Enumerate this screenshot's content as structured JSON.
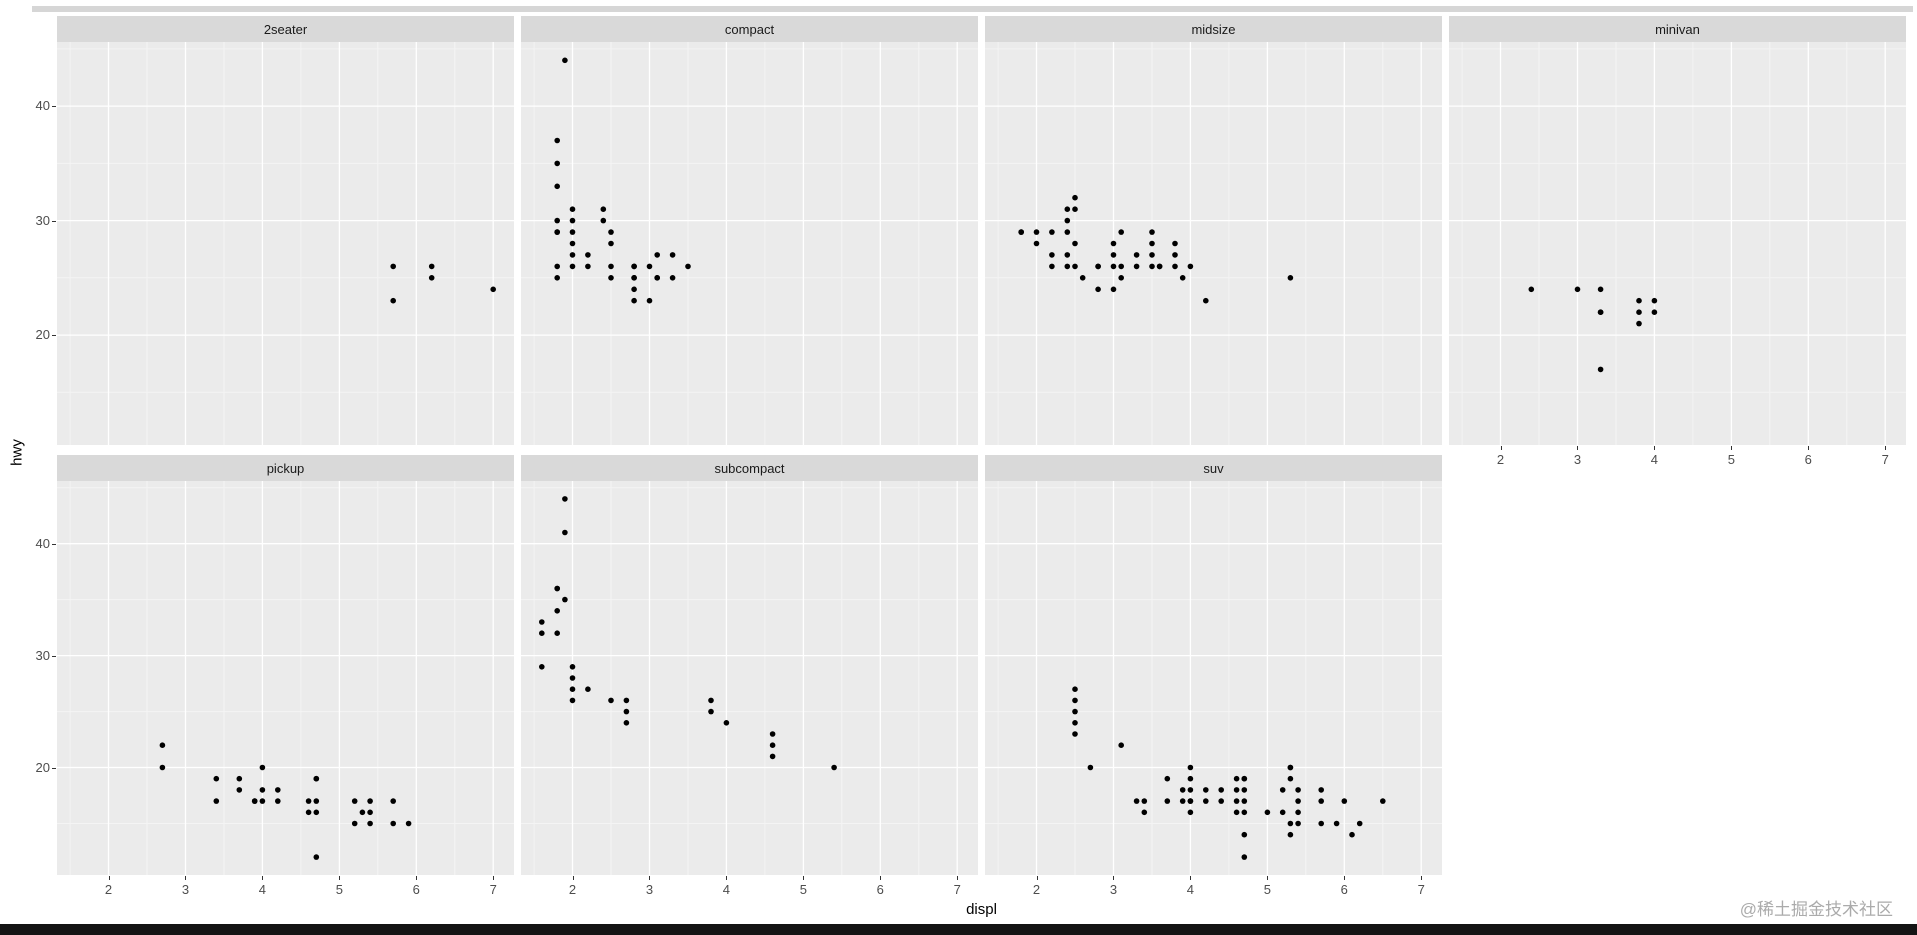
{
  "page": {
    "watermark": "@稀土掘金技术社区"
  },
  "chart_data": {
    "type": "scatter",
    "title": "",
    "xlabel": "displ",
    "ylabel": "hwy",
    "x_ticks": [
      2,
      3,
      4,
      5,
      6,
      7
    ],
    "y_ticks": [
      20,
      30,
      40
    ],
    "xlim": [
      1.33,
      7.27
    ],
    "ylim": [
      10.4,
      45.6
    ],
    "grid": "on",
    "legend": "none",
    "point_color": "#000000",
    "panel_bg": "#ebebeb",
    "strip_bg": "#d9d9d9",
    "grid_major": "#ffffff",
    "grid_minor": "#f4f4f4",
    "facets": [
      {
        "label": "2seater",
        "points": [
          [
            5.7,
            26
          ],
          [
            5.7,
            23
          ],
          [
            6.2,
            26
          ],
          [
            6.2,
            25
          ],
          [
            7.0,
            24
          ]
        ]
      },
      {
        "label": "compact",
        "points": [
          [
            1.8,
            29
          ],
          [
            1.8,
            29
          ],
          [
            2.0,
            31
          ],
          [
            2.0,
            30
          ],
          [
            2.8,
            26
          ],
          [
            2.8,
            26
          ],
          [
            3.1,
            27
          ],
          [
            1.8,
            26
          ],
          [
            1.8,
            25
          ],
          [
            2.0,
            28
          ],
          [
            2.0,
            27
          ],
          [
            2.8,
            25
          ],
          [
            2.8,
            25
          ],
          [
            3.1,
            25
          ],
          [
            3.1,
            25
          ],
          [
            1.8,
            30
          ],
          [
            1.8,
            33
          ],
          [
            1.8,
            35
          ],
          [
            1.8,
            37
          ],
          [
            1.9,
            44
          ],
          [
            2.0,
            29
          ],
          [
            2.0,
            26
          ],
          [
            2.5,
            29
          ],
          [
            2.5,
            28
          ],
          [
            2.8,
            24
          ],
          [
            2.8,
            23
          ],
          [
            2.2,
            27
          ],
          [
            2.2,
            26
          ],
          [
            2.4,
            31
          ],
          [
            2.4,
            30
          ],
          [
            2.5,
            26
          ],
          [
            2.5,
            25
          ],
          [
            3.0,
            26
          ],
          [
            3.0,
            23
          ],
          [
            3.3,
            25
          ],
          [
            3.3,
            27
          ],
          [
            3.5,
            26
          ]
        ]
      },
      {
        "label": "midsize",
        "points": [
          [
            1.8,
            29
          ],
          [
            1.8,
            29
          ],
          [
            2.0,
            28
          ],
          [
            2.0,
            29
          ],
          [
            2.2,
            26
          ],
          [
            2.2,
            27
          ],
          [
            2.2,
            29
          ],
          [
            2.4,
            26
          ],
          [
            2.4,
            27
          ],
          [
            2.4,
            29
          ],
          [
            2.4,
            30
          ],
          [
            2.4,
            31
          ],
          [
            2.5,
            26
          ],
          [
            2.5,
            28
          ],
          [
            2.5,
            31
          ],
          [
            2.5,
            32
          ],
          [
            2.6,
            25
          ],
          [
            2.8,
            24
          ],
          [
            2.8,
            26
          ],
          [
            2.8,
            26
          ],
          [
            3.0,
            24
          ],
          [
            3.0,
            26
          ],
          [
            3.0,
            27
          ],
          [
            3.0,
            28
          ],
          [
            3.1,
            25
          ],
          [
            3.1,
            26
          ],
          [
            3.1,
            29
          ],
          [
            3.3,
            26
          ],
          [
            3.3,
            27
          ],
          [
            3.5,
            26
          ],
          [
            3.5,
            27
          ],
          [
            3.5,
            28
          ],
          [
            3.5,
            29
          ],
          [
            3.6,
            26
          ],
          [
            3.6,
            26
          ],
          [
            3.8,
            26
          ],
          [
            3.8,
            27
          ],
          [
            3.8,
            28
          ],
          [
            3.9,
            25
          ],
          [
            4.0,
            26
          ],
          [
            4.2,
            23
          ],
          [
            5.3,
            25
          ]
        ]
      },
      {
        "label": "minivan",
        "points": [
          [
            2.4,
            24
          ],
          [
            3.0,
            24
          ],
          [
            3.3,
            24
          ],
          [
            3.3,
            22
          ],
          [
            3.3,
            22
          ],
          [
            3.3,
            17
          ],
          [
            3.8,
            23
          ],
          [
            3.8,
            22
          ],
          [
            3.8,
            21
          ],
          [
            4.0,
            23
          ],
          [
            4.0,
            22
          ]
        ]
      },
      {
        "label": "pickup",
        "points": [
          [
            2.7,
            22
          ],
          [
            2.7,
            20
          ],
          [
            3.4,
            19
          ],
          [
            3.4,
            17
          ],
          [
            3.7,
            19
          ],
          [
            3.7,
            18
          ],
          [
            3.9,
            17
          ],
          [
            3.9,
            17
          ],
          [
            4.0,
            20
          ],
          [
            4.0,
            18
          ],
          [
            4.0,
            17
          ],
          [
            4.2,
            18
          ],
          [
            4.2,
            17
          ],
          [
            4.6,
            17
          ],
          [
            4.6,
            16
          ],
          [
            4.7,
            19
          ],
          [
            4.7,
            19
          ],
          [
            4.7,
            17
          ],
          [
            4.7,
            16
          ],
          [
            4.7,
            12
          ],
          [
            5.2,
            17
          ],
          [
            5.2,
            15
          ],
          [
            5.3,
            16
          ],
          [
            5.4,
            17
          ],
          [
            5.4,
            16
          ],
          [
            5.4,
            15
          ],
          [
            5.7,
            17
          ],
          [
            5.7,
            15
          ],
          [
            5.9,
            15
          ]
        ]
      },
      {
        "label": "subcompact",
        "points": [
          [
            1.6,
            33
          ],
          [
            1.6,
            32
          ],
          [
            1.6,
            29
          ],
          [
            1.8,
            36
          ],
          [
            1.8,
            36
          ],
          [
            1.8,
            34
          ],
          [
            1.8,
            32
          ],
          [
            1.9,
            44
          ],
          [
            1.9,
            41
          ],
          [
            1.9,
            35
          ],
          [
            2.0,
            29
          ],
          [
            2.0,
            28
          ],
          [
            2.0,
            27
          ],
          [
            2.0,
            26
          ],
          [
            2.2,
            27
          ],
          [
            2.5,
            26
          ],
          [
            2.7,
            26
          ],
          [
            2.7,
            25
          ],
          [
            2.7,
            24
          ],
          [
            3.8,
            26
          ],
          [
            3.8,
            25
          ],
          [
            4.0,
            24
          ],
          [
            4.6,
            23
          ],
          [
            4.6,
            22
          ],
          [
            4.6,
            21
          ],
          [
            5.4,
            20
          ]
        ]
      },
      {
        "label": "suv",
        "points": [
          [
            2.5,
            27
          ],
          [
            2.5,
            26
          ],
          [
            2.5,
            25
          ],
          [
            2.5,
            24
          ],
          [
            2.5,
            23
          ],
          [
            2.7,
            20
          ],
          [
            3.1,
            22
          ],
          [
            3.3,
            17
          ],
          [
            3.4,
            17
          ],
          [
            3.4,
            16
          ],
          [
            3.7,
            19
          ],
          [
            3.7,
            17
          ],
          [
            3.9,
            18
          ],
          [
            3.9,
            17
          ],
          [
            4.0,
            20
          ],
          [
            4.0,
            19
          ],
          [
            4.0,
            18
          ],
          [
            4.0,
            17
          ],
          [
            4.0,
            17
          ],
          [
            4.0,
            16
          ],
          [
            4.2,
            18
          ],
          [
            4.2,
            17
          ],
          [
            4.4,
            18
          ],
          [
            4.4,
            17
          ],
          [
            4.6,
            19
          ],
          [
            4.6,
            18
          ],
          [
            4.6,
            17
          ],
          [
            4.6,
            16
          ],
          [
            4.7,
            19
          ],
          [
            4.7,
            19
          ],
          [
            4.7,
            18
          ],
          [
            4.7,
            17
          ],
          [
            4.7,
            16
          ],
          [
            4.7,
            14
          ],
          [
            4.7,
            12
          ],
          [
            5.0,
            16
          ],
          [
            5.2,
            18
          ],
          [
            5.2,
            16
          ],
          [
            5.3,
            20
          ],
          [
            5.3,
            20
          ],
          [
            5.3,
            19
          ],
          [
            5.3,
            15
          ],
          [
            5.3,
            14
          ],
          [
            5.4,
            18
          ],
          [
            5.4,
            17
          ],
          [
            5.4,
            16
          ],
          [
            5.4,
            15
          ],
          [
            5.7,
            18
          ],
          [
            5.7,
            17
          ],
          [
            5.7,
            15
          ],
          [
            5.9,
            15
          ],
          [
            6.0,
            17
          ],
          [
            6.1,
            14
          ],
          [
            6.2,
            15
          ],
          [
            6.5,
            17
          ]
        ]
      }
    ]
  }
}
